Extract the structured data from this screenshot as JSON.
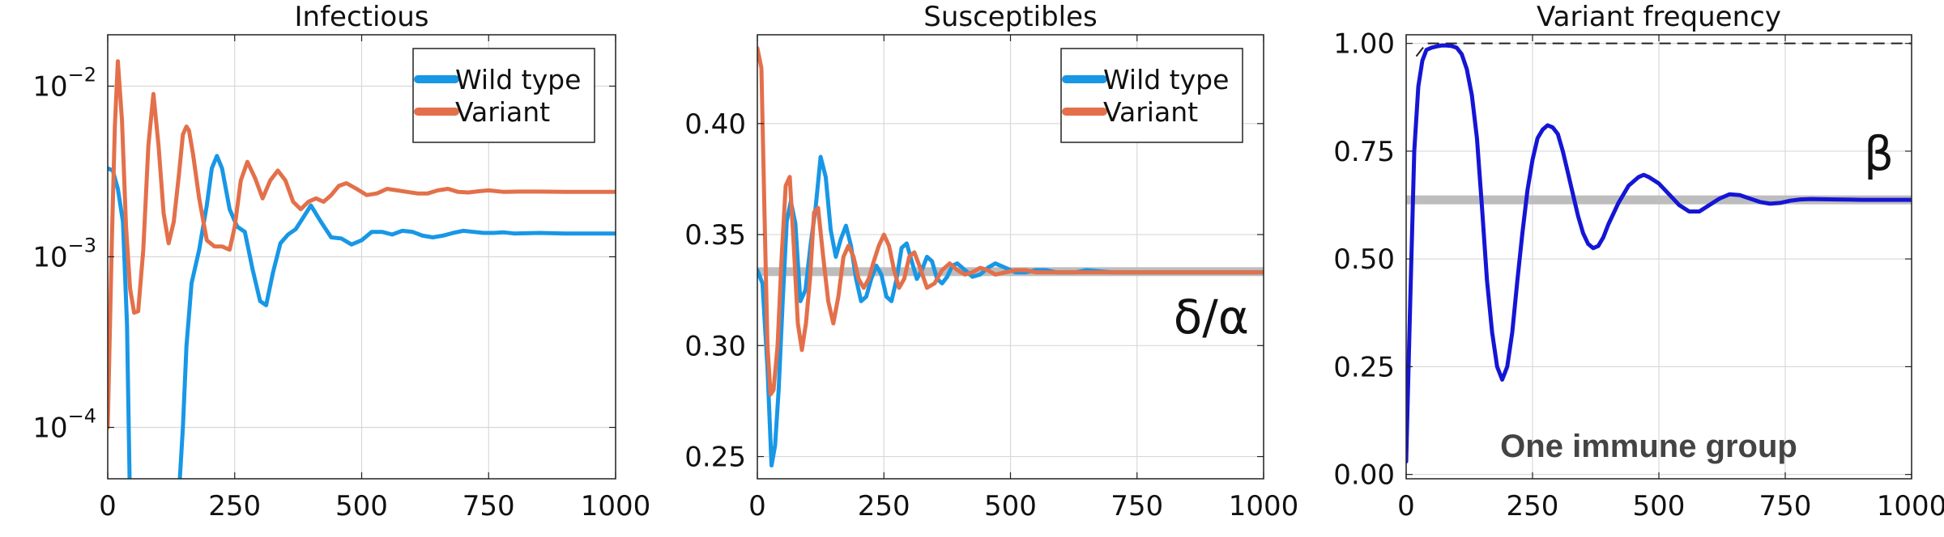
{
  "colors": {
    "wild_type": "#1897e6",
    "variant": "#e3704a",
    "frequency": "#1515d6",
    "reference": "#bdbdbd"
  },
  "chart_data": [
    {
      "type": "line",
      "title": "Infectious",
      "yscale": "log",
      "xlim": [
        0,
        1000
      ],
      "ylim": [
        5e-05,
        0.02
      ],
      "xticks": [
        0,
        250,
        500,
        750,
        1000
      ],
      "xtick_labels": [
        "0",
        "250",
        "500",
        "750",
        "1000"
      ],
      "yticks": [
        0.0001,
        0.001,
        0.01
      ],
      "ytick_labels": [
        {
          "base": "10",
          "exp": "−4"
        },
        {
          "base": "10",
          "exp": "−3"
        },
        {
          "base": "10",
          "exp": "−2"
        }
      ],
      "grid": true,
      "legend": "top-right",
      "series": [
        {
          "name": "Wild type",
          "color_key": "wild_type",
          "segments": [
            {
              "x": [
                0,
                10,
                20,
                30,
                38,
                43
              ],
              "y": [
                0.0033,
                0.0032,
                0.0025,
                0.0016,
                0.0004,
                5e-05
              ]
            },
            {
              "x": [
                142,
                148,
                155,
                165,
                180,
                195,
                205,
                215,
                225,
                240,
                255,
                270,
                285,
                300,
                312,
                325,
                340,
                355,
                370,
                385,
                400,
                420,
                440,
                460,
                480,
                500,
                520,
                540,
                560,
                580,
                600,
                620,
                640,
                660,
                680,
                700,
                720,
                740,
                760,
                780,
                800,
                850,
                900,
                950,
                1000
              ],
              "y": [
                5e-05,
                0.0001,
                0.0003,
                0.0007,
                0.0011,
                0.002,
                0.0033,
                0.0039,
                0.0033,
                0.0019,
                0.0015,
                0.0014,
                0.00085,
                0.00055,
                0.00052,
                0.0008,
                0.0012,
                0.00135,
                0.00145,
                0.0017,
                0.002,
                0.0016,
                0.0013,
                0.00128,
                0.00118,
                0.00125,
                0.0014,
                0.0014,
                0.00135,
                0.00142,
                0.0014,
                0.00133,
                0.0013,
                0.00133,
                0.00138,
                0.00142,
                0.0014,
                0.00138,
                0.00138,
                0.00139,
                0.00137,
                0.00138,
                0.00137,
                0.00137,
                0.00137
              ]
            }
          ]
        },
        {
          "name": "Variant",
          "color_key": "variant",
          "segments": [
            {
              "x": [
                0,
                8,
                14,
                20,
                28,
                36,
                44,
                52,
                60,
                70,
                80,
                90,
                100,
                110,
                120,
                130,
                140,
                148,
                155,
                160,
                168,
                180,
                195,
                210,
                225,
                240,
                250,
                262,
                275,
                290,
                305,
                320,
                335,
                350,
                365,
                380,
                395,
                410,
                425,
                440,
                455,
                470,
                490,
                510,
                530,
                550,
                570,
                590,
                610,
                630,
                650,
                670,
                690,
                710,
                730,
                750,
                780,
                810,
                850,
                900,
                950,
                1000
              ],
              "y": [
                0.0001,
                0.0012,
                0.0058,
                0.014,
                0.0063,
                0.0015,
                0.00065,
                0.00047,
                0.00048,
                0.0011,
                0.0045,
                0.009,
                0.0045,
                0.0018,
                0.0012,
                0.0016,
                0.003,
                0.0052,
                0.0058,
                0.0055,
                0.004,
                0.0022,
                0.00125,
                0.00115,
                0.00115,
                0.0011,
                0.0015,
                0.0028,
                0.0036,
                0.0029,
                0.0022,
                0.0028,
                0.0032,
                0.0028,
                0.0021,
                0.0019,
                0.0021,
                0.0022,
                0.0021,
                0.0023,
                0.0026,
                0.0027,
                0.0025,
                0.0023,
                0.00235,
                0.0025,
                0.00245,
                0.0024,
                0.00235,
                0.00235,
                0.00245,
                0.0025,
                0.0024,
                0.00238,
                0.00242,
                0.00245,
                0.0024,
                0.00241,
                0.00241,
                0.0024,
                0.0024,
                0.0024
              ]
            }
          ]
        }
      ]
    },
    {
      "type": "line",
      "title": "Susceptibles",
      "xlim": [
        0,
        1000
      ],
      "ylim": [
        0.24,
        0.44
      ],
      "xticks": [
        0,
        250,
        500,
        750,
        1000
      ],
      "xtick_labels": [
        "0",
        "250",
        "500",
        "750",
        "1000"
      ],
      "yticks": [
        0.25,
        0.3,
        0.35,
        0.4
      ],
      "ytick_labels": [
        "0.25",
        "0.30",
        "0.35",
        "0.40"
      ],
      "grid": true,
      "legend": "top-right",
      "hline": {
        "y": 0.3333,
        "color_key": "reference",
        "label": "δ/α"
      },
      "series": [
        {
          "name": "Wild type",
          "color_key": "wild_type",
          "x": [
            0,
            10,
            20,
            28,
            35,
            42,
            50,
            58,
            66,
            75,
            85,
            95,
            105,
            115,
            125,
            135,
            145,
            155,
            165,
            175,
            185,
            195,
            205,
            215,
            225,
            235,
            245,
            255,
            265,
            275,
            285,
            295,
            305,
            315,
            325,
            335,
            345,
            355,
            365,
            375,
            385,
            395,
            410,
            425,
            440,
            455,
            470,
            490,
            510,
            530,
            550,
            570,
            590,
            610,
            630,
            650,
            700,
            750,
            800,
            850,
            900,
            950,
            1000
          ],
          "y": [
            0.334,
            0.328,
            0.29,
            0.246,
            0.255,
            0.28,
            0.32,
            0.356,
            0.365,
            0.355,
            0.32,
            0.325,
            0.345,
            0.362,
            0.385,
            0.376,
            0.352,
            0.34,
            0.348,
            0.354,
            0.345,
            0.33,
            0.32,
            0.322,
            0.33,
            0.336,
            0.332,
            0.322,
            0.32,
            0.33,
            0.344,
            0.346,
            0.338,
            0.33,
            0.334,
            0.34,
            0.338,
            0.33,
            0.328,
            0.331,
            0.336,
            0.337,
            0.334,
            0.331,
            0.332,
            0.335,
            0.337,
            0.335,
            0.333,
            0.333,
            0.334,
            0.334,
            0.333,
            0.333,
            0.333,
            0.334,
            0.333,
            0.333,
            0.333,
            0.333,
            0.333,
            0.333,
            0.333
          ]
        },
        {
          "name": "Variant",
          "color_key": "variant",
          "x": [
            0,
            8,
            14,
            20,
            26,
            32,
            40,
            48,
            56,
            64,
            72,
            80,
            88,
            96,
            104,
            112,
            120,
            130,
            140,
            150,
            160,
            170,
            180,
            190,
            200,
            210,
            220,
            230,
            240,
            250,
            260,
            270,
            280,
            290,
            300,
            310,
            320,
            335,
            350,
            365,
            380,
            395,
            410,
            425,
            440,
            455,
            470,
            490,
            510,
            530,
            550,
            570,
            590,
            610,
            630,
            650,
            700,
            750,
            800,
            850,
            900,
            950,
            1000
          ],
          "y": [
            0.434,
            0.425,
            0.36,
            0.3,
            0.278,
            0.28,
            0.3,
            0.34,
            0.372,
            0.376,
            0.345,
            0.31,
            0.298,
            0.31,
            0.33,
            0.36,
            0.362,
            0.34,
            0.32,
            0.31,
            0.322,
            0.34,
            0.345,
            0.34,
            0.33,
            0.326,
            0.33,
            0.338,
            0.345,
            0.35,
            0.345,
            0.334,
            0.326,
            0.33,
            0.34,
            0.342,
            0.336,
            0.326,
            0.328,
            0.334,
            0.337,
            0.334,
            0.332,
            0.333,
            0.335,
            0.334,
            0.332,
            0.333,
            0.334,
            0.334,
            0.333,
            0.333,
            0.333,
            0.333,
            0.333,
            0.333,
            0.333,
            0.333,
            0.333,
            0.333,
            0.333,
            0.333,
            0.333
          ]
        }
      ]
    },
    {
      "type": "line",
      "title": "Variant frequency",
      "xlim": [
        0,
        1000
      ],
      "ylim": [
        -0.01,
        1.02
      ],
      "xticks": [
        0,
        250,
        500,
        750,
        1000
      ],
      "xtick_labels": [
        "0",
        "250",
        "500",
        "750",
        "1000"
      ],
      "yticks": [
        0.0,
        0.25,
        0.5,
        0.75,
        1.0
      ],
      "ytick_labels": [
        "0.00",
        "0.25",
        "0.50",
        "0.75",
        "1.00"
      ],
      "grid": true,
      "hline": {
        "y": 0.637,
        "color_key": "reference",
        "label": "β"
      },
      "dashed_line": {
        "x": [
          20,
          40,
          1000
        ],
        "y": [
          0.97,
          1.0,
          1.0
        ]
      },
      "annotation": "One immune group",
      "series": [
        {
          "name": "",
          "color_key": "frequency",
          "x": [
            0,
            8,
            16,
            24,
            32,
            40,
            50,
            60,
            70,
            80,
            90,
            100,
            110,
            120,
            130,
            140,
            150,
            160,
            170,
            180,
            190,
            200,
            210,
            220,
            230,
            240,
            250,
            260,
            270,
            280,
            290,
            300,
            310,
            320,
            330,
            340,
            350,
            360,
            370,
            380,
            390,
            400,
            420,
            440,
            460,
            470,
            480,
            500,
            520,
            540,
            560,
            580,
            600,
            620,
            640,
            660,
            680,
            700,
            720,
            740,
            760,
            780,
            800,
            850,
            900,
            950,
            1000
          ],
          "y": [
            0.03,
            0.4,
            0.75,
            0.9,
            0.96,
            0.985,
            0.99,
            0.993,
            0.995,
            0.995,
            0.994,
            0.99,
            0.975,
            0.94,
            0.88,
            0.78,
            0.62,
            0.45,
            0.33,
            0.25,
            0.22,
            0.25,
            0.33,
            0.45,
            0.56,
            0.66,
            0.73,
            0.78,
            0.8,
            0.81,
            0.805,
            0.79,
            0.75,
            0.7,
            0.65,
            0.6,
            0.56,
            0.535,
            0.525,
            0.53,
            0.55,
            0.58,
            0.63,
            0.67,
            0.69,
            0.695,
            0.69,
            0.675,
            0.65,
            0.625,
            0.61,
            0.61,
            0.625,
            0.64,
            0.65,
            0.648,
            0.64,
            0.632,
            0.628,
            0.63,
            0.635,
            0.638,
            0.639,
            0.638,
            0.637,
            0.637,
            0.637
          ]
        }
      ]
    }
  ]
}
